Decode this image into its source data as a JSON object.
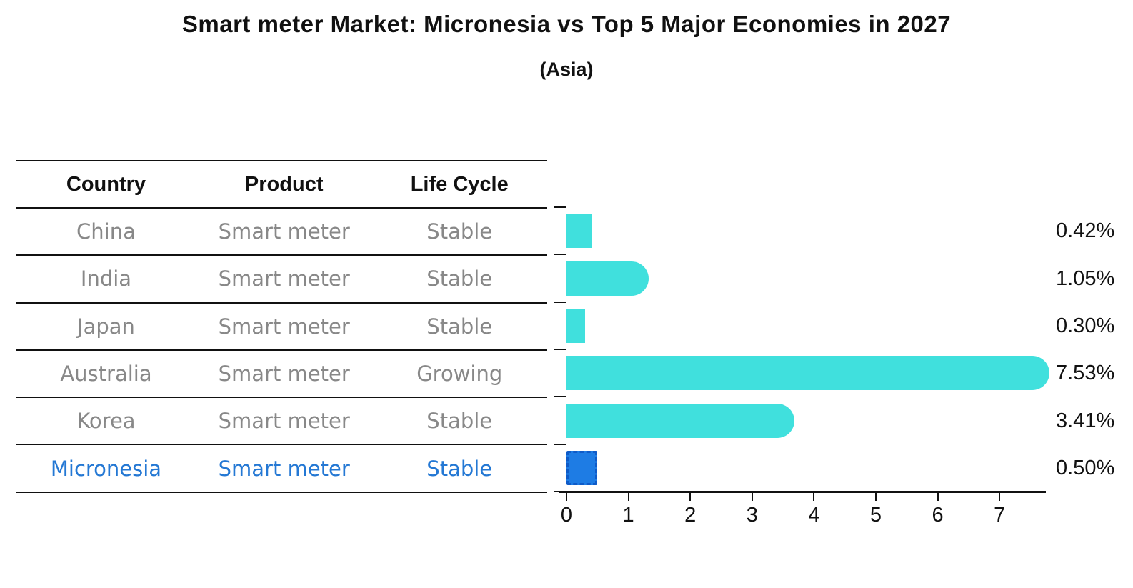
{
  "title": "Smart meter Market: Micronesia vs Top 5 Major Economies in 2027",
  "subtitle": "(Asia)",
  "table": {
    "columns": [
      "Country",
      "Product",
      "Life Cycle"
    ],
    "rows": [
      {
        "country": "China",
        "product": "Smart meter",
        "life_cycle": "Stable",
        "highlight": false
      },
      {
        "country": "India",
        "product": "Smart meter",
        "life_cycle": "Stable",
        "highlight": false
      },
      {
        "country": "Japan",
        "product": "Smart meter",
        "life_cycle": "Stable",
        "highlight": false
      },
      {
        "country": "Australia",
        "product": "Smart meter",
        "life_cycle": "Growing",
        "highlight": false
      },
      {
        "country": "Korea",
        "product": "Smart meter",
        "life_cycle": "Stable",
        "highlight": false
      },
      {
        "country": "Micronesia",
        "product": "Smart meter",
        "life_cycle": "Stable",
        "highlight": true
      }
    ]
  },
  "chart_data": {
    "type": "bar",
    "orientation": "horizontal",
    "title": "Smart meter Market: Micronesia vs Top 5 Major Economies in 2027",
    "subtitle": "(Asia)",
    "categories": [
      "China",
      "India",
      "Japan",
      "Australia",
      "Korea",
      "Micronesia"
    ],
    "values": [
      0.42,
      1.05,
      0.3,
      7.53,
      3.41,
      0.5
    ],
    "labels": [
      "0.42%",
      "1.05%",
      "0.30%",
      "7.53%",
      "3.41%",
      "0.50%"
    ],
    "xlabel": "",
    "ylabel": "",
    "xticks": [
      0,
      1,
      2,
      3,
      4,
      5,
      6,
      7
    ],
    "xlim": [
      0,
      7.75
    ],
    "grid": false,
    "legend": "none",
    "highlight_index": 5
  },
  "colors": {
    "bar": "#40E0DD",
    "highlight_fill": "#1E7CE4",
    "highlight_border": "#0F5BC8",
    "highlight_text": "#2478D4",
    "row_text": "#888888",
    "line": "#111111"
  }
}
